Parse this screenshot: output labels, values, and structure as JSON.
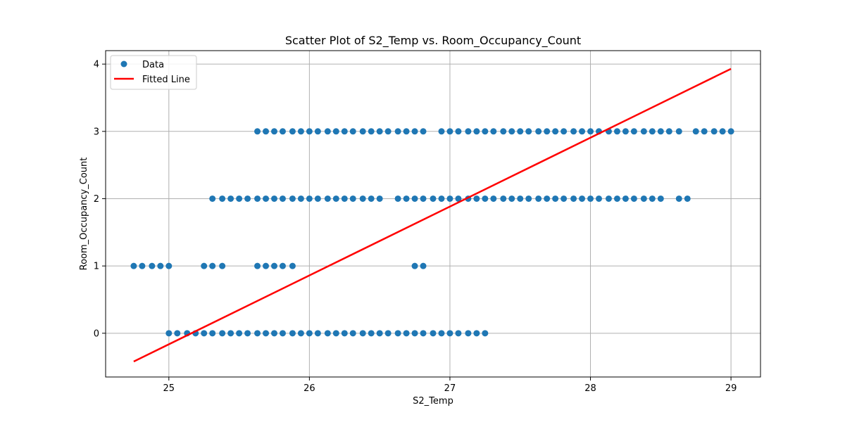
{
  "chart_data": {
    "type": "scatter",
    "title": "Scatter Plot of S2_Temp vs. Room_Occupancy_Count",
    "xlabel": "S2_Temp",
    "ylabel": "Room_Occupancy_Count",
    "xlim": [
      24.55,
      29.21
    ],
    "ylim": [
      -0.65,
      4.2
    ],
    "xticks": [
      25,
      26,
      27,
      28,
      29
    ],
    "yticks": [
      0,
      1,
      2,
      3,
      4
    ],
    "grid": true,
    "legend": {
      "placement": "top-left",
      "entries": [
        "Data",
        "Fitted Line"
      ]
    },
    "colors": {
      "points": "#1f77b4",
      "line": "#ff0000"
    },
    "series": [
      {
        "name": "Data",
        "kind": "scatter",
        "points": [
          {
            "y": 3,
            "x": [
              25.63,
              25.69,
              25.75,
              25.81,
              25.88,
              25.94,
              26.0,
              26.06,
              26.13,
              26.19,
              26.25,
              26.31,
              26.38,
              26.44,
              26.5,
              26.56,
              26.63,
              26.69,
              26.75,
              26.81,
              26.94,
              27.0,
              27.06,
              27.13,
              27.19,
              27.25,
              27.31,
              27.38,
              27.44,
              27.5,
              27.56,
              27.63,
              27.69,
              27.75,
              27.81,
              27.88,
              27.94,
              28.0,
              28.06,
              28.13,
              28.19,
              28.25,
              28.31,
              28.38,
              28.44,
              28.5,
              28.56,
              28.63,
              28.75,
              28.81,
              28.88,
              28.94,
              29.0
            ]
          },
          {
            "y": 2,
            "x": [
              25.31,
              25.38,
              25.44,
              25.5,
              25.56,
              25.63,
              25.69,
              25.75,
              25.81,
              25.88,
              25.94,
              26.0,
              26.06,
              26.13,
              26.19,
              26.25,
              26.31,
              26.38,
              26.44,
              26.5,
              26.63,
              26.69,
              26.75,
              26.81,
              26.88,
              26.94,
              27.0,
              27.06,
              27.13,
              27.19,
              27.25,
              27.31,
              27.38,
              27.44,
              27.5,
              27.56,
              27.63,
              27.69,
              27.75,
              27.81,
              27.88,
              27.94,
              28.0,
              28.06,
              28.13,
              28.19,
              28.25,
              28.31,
              28.38,
              28.44,
              28.5,
              28.63,
              28.69
            ]
          },
          {
            "y": 1,
            "x": [
              24.75,
              24.81,
              24.88,
              24.94,
              25.0,
              25.25,
              25.31,
              25.38,
              25.63,
              25.69,
              25.75,
              25.81,
              25.88,
              26.75,
              26.81
            ]
          },
          {
            "y": 0,
            "x": [
              25.0,
              25.06,
              25.13,
              25.19,
              25.25,
              25.31,
              25.38,
              25.44,
              25.5,
              25.56,
              25.63,
              25.69,
              25.75,
              25.81,
              25.88,
              25.94,
              26.0,
              26.06,
              26.13,
              26.19,
              26.25,
              26.31,
              26.38,
              26.44,
              26.5,
              26.56,
              26.63,
              26.69,
              26.75,
              26.81,
              26.88,
              26.94,
              27.0,
              27.06,
              27.13,
              27.19,
              27.25
            ]
          }
        ]
      },
      {
        "name": "Fitted Line",
        "kind": "line",
        "x": [
          24.75,
          29.0
        ],
        "y": [
          -0.42,
          3.93
        ]
      }
    ]
  }
}
